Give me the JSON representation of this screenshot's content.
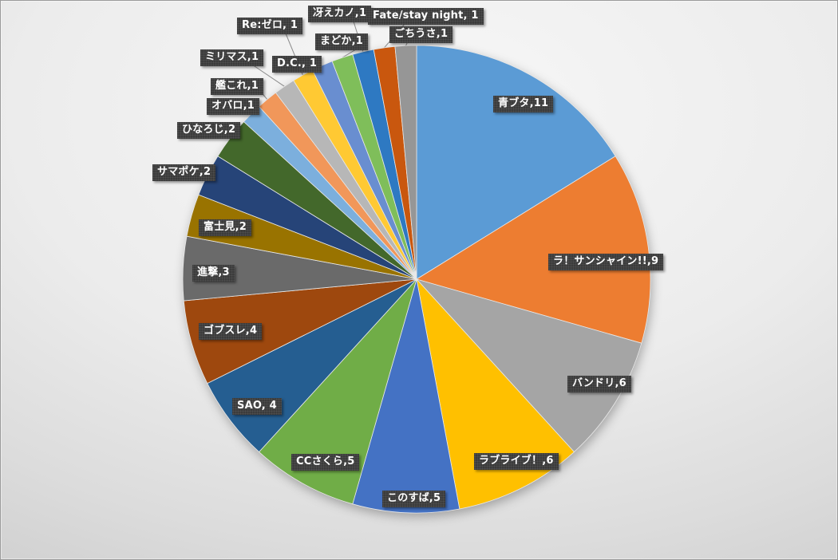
{
  "chart_data": {
    "type": "pie",
    "title": "",
    "legend": "none",
    "total": 68,
    "start_angle_deg": 0,
    "direction": "clockwise",
    "data_label_format": "category, value",
    "slices": [
      {
        "category": "青ブタ",
        "value": 11,
        "label": "青ブタ,11",
        "color": "#5B9BD5"
      },
      {
        "category": "ラ！サンシャイン!!",
        "value": 9,
        "label": "ラ！サンシャイン!!,9",
        "color": "#ED7D31"
      },
      {
        "category": "バンドリ",
        "value": 6,
        "label": "バンドリ,6",
        "color": "#A5A5A5"
      },
      {
        "category": "ラブライブ！",
        "value": 6,
        "label": "ラブライブ！,6",
        "color": "#FFC000"
      },
      {
        "category": "このすば",
        "value": 5,
        "label": "このすば,5",
        "color": "#4472C4"
      },
      {
        "category": "CCさくら",
        "value": 5,
        "label": "CCさくら,5",
        "color": "#70AD47"
      },
      {
        "category": "SAO",
        "value": 4,
        "label": "SAO, 4",
        "color": "#255E91"
      },
      {
        "category": "ゴブスレ",
        "value": 4,
        "label": "ゴブスレ,4",
        "color": "#9E480E"
      },
      {
        "category": "進撃",
        "value": 3,
        "label": "進撃,3",
        "color": "#6A6A6A"
      },
      {
        "category": "富士見",
        "value": 2,
        "label": "富士見,2",
        "color": "#997300"
      },
      {
        "category": "サマポケ",
        "value": 2,
        "label": "サマポケ,2",
        "color": "#264478"
      },
      {
        "category": "ひなろじ",
        "value": 2,
        "label": "ひなろじ,2",
        "color": "#43682B"
      },
      {
        "category": "オバロ",
        "value": 1,
        "label": "オバロ,1",
        "color": "#7CAFDD"
      },
      {
        "category": "艦これ",
        "value": 1,
        "label": "艦これ,1",
        "color": "#F1975A"
      },
      {
        "category": "ミリマス",
        "value": 1,
        "label": "ミリマス,1",
        "color": "#B7B7B7"
      },
      {
        "category": "Re:ゼロ",
        "value": 1,
        "label": "Re:ゼロ, 1",
        "color": "#FFC933"
      },
      {
        "category": "D.C.",
        "value": 1,
        "label": "D.C., 1",
        "color": "#698ED0"
      },
      {
        "category": "まどか",
        "value": 1,
        "label": "まどか,1",
        "color": "#7FBE5A"
      },
      {
        "category": "冴えカノ",
        "value": 1,
        "label": "冴えカノ,1",
        "color": "#2E79C2"
      },
      {
        "category": "Fate/stay night",
        "value": 1,
        "label": "Fate/stay night, 1",
        "color": "#C9570E"
      },
      {
        "category": "ごちうさ",
        "value": 1,
        "label": "ごちうさ,1",
        "color": "#969696"
      }
    ],
    "style": {
      "slice_border_color": "#E8E8E8",
      "label_box_color": "#3B3B3B",
      "label_text_color": "#FFFFFF",
      "leader_line_color": "#8C8C8C",
      "background_center": "#F7F7F7",
      "background_edge": "#C3C3C3"
    }
  }
}
